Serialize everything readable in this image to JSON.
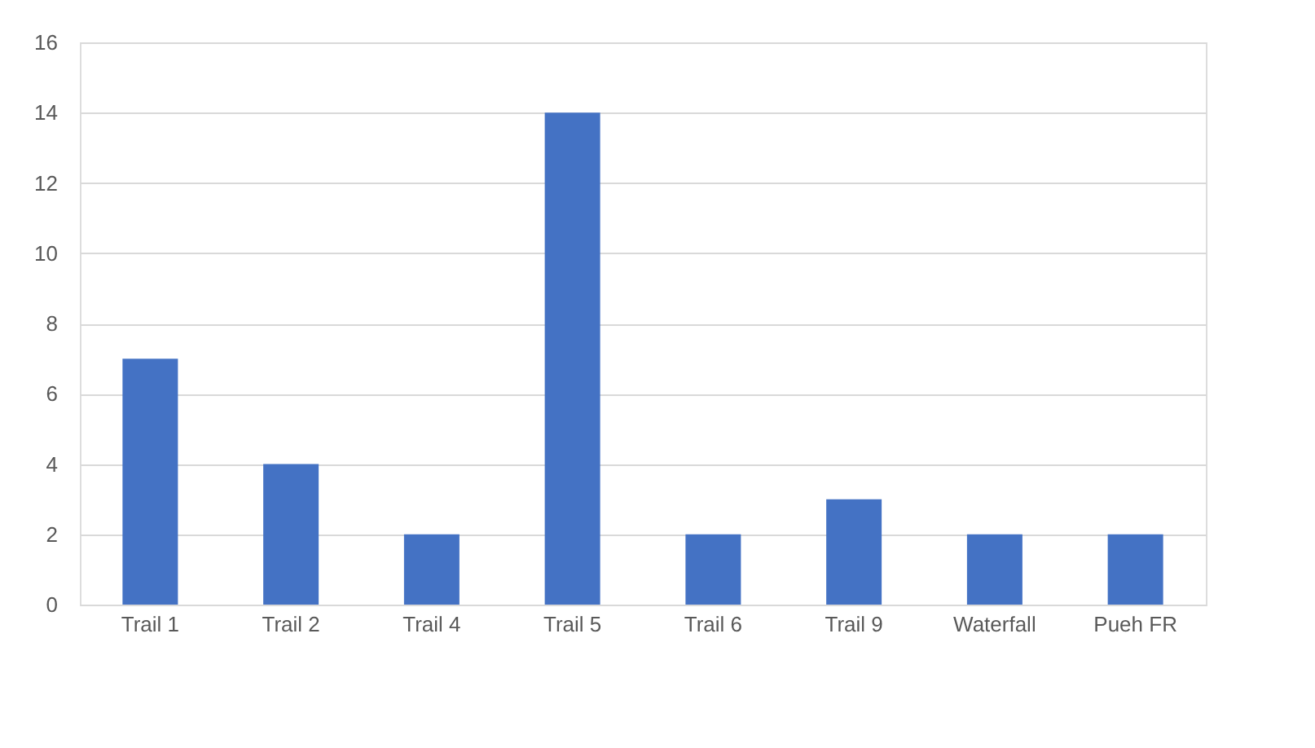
{
  "chart_data": {
    "type": "bar",
    "categories": [
      "Trail 1",
      "Trail 2",
      "Trail 4",
      "Trail 5",
      "Trail 6",
      "Trail 9",
      "Waterfall",
      "Pueh FR"
    ],
    "values": [
      7,
      4,
      2,
      14,
      2,
      3,
      2,
      2
    ],
    "color": "#4472c4",
    "ylim": [
      0,
      16
    ],
    "yticks": [
      0,
      2,
      4,
      6,
      8,
      10,
      12,
      14,
      16
    ],
    "grid": "y"
  }
}
